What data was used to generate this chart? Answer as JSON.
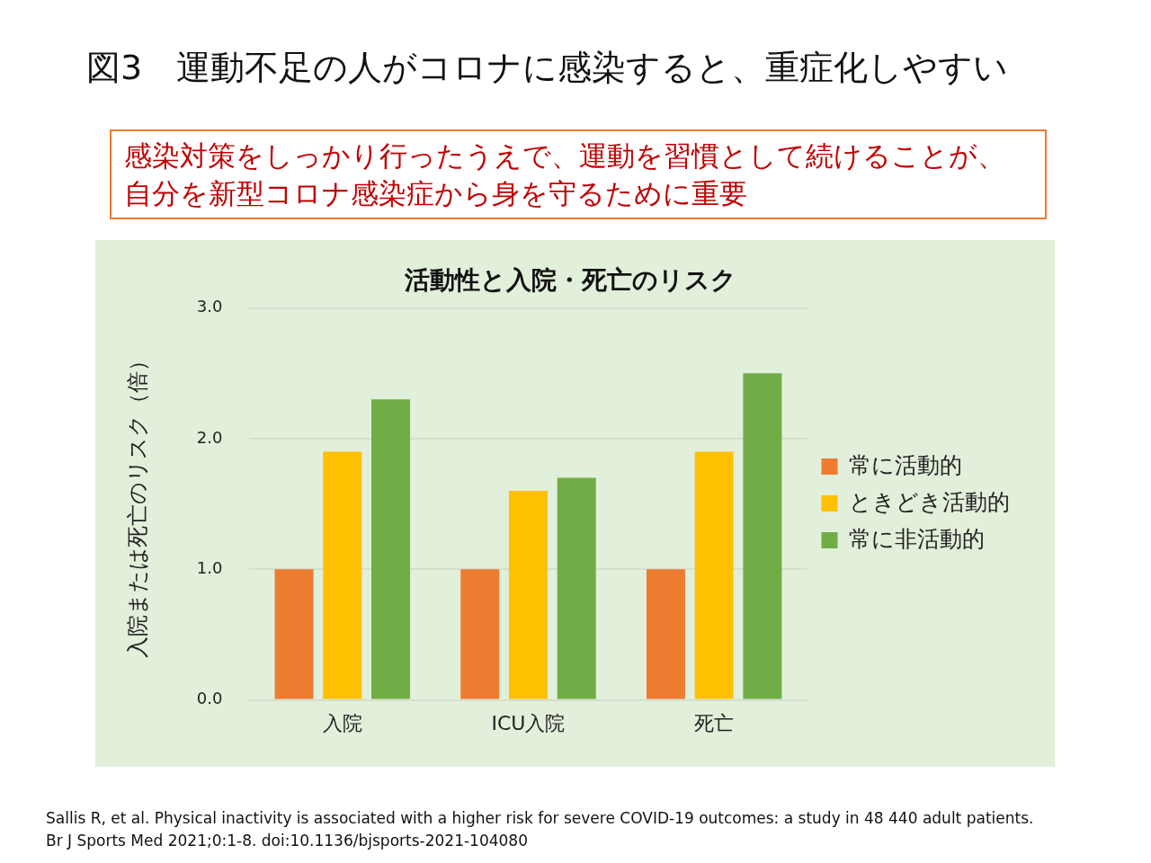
{
  "chart_data": {
    "type": "bar",
    "title": "図3　運動不足の人がコロナに感染すると、重症化しやすい",
    "subtitle": "感染対策をしっかり行ったうえで、運動を習慣として続けることが、自分を新型コロナ感染症から身を守るために重要",
    "annotations": [
      "活動性と入院・死亡のリスク",
      "Sallis R, et al. Physical inactivity is associated with a higher risk for severe COVID-19 outcomes: a study in 48 440 adult patients.",
      "Br J Sports Med 2021;0:1-8. doi:10.1136/bjsports-2021-104080"
    ],
    "ylabel": "入院または死亡のリスク（倍）",
    "categories": [
      "入院",
      "ICU入院",
      "死亡"
    ],
    "series": [
      {
        "name": "常に活動的",
        "color": "#ed7d31",
        "values": [
          1.0,
          1.0,
          1.0
        ]
      },
      {
        "name": "ときどき活動的",
        "color": "#ffc000",
        "values": [
          1.9,
          1.6,
          1.9
        ]
      },
      {
        "name": "常に非活動的",
        "color": "#70ad47",
        "values": [
          2.3,
          1.7,
          2.5
        ]
      }
    ],
    "ylim": [
      0,
      3
    ],
    "yticks": [
      {
        "value": 0,
        "label": "0.0"
      },
      {
        "value": 1,
        "label": "1.0"
      },
      {
        "value": 2,
        "label": "2.0"
      },
      {
        "value": 3,
        "label": "3.0"
      }
    ],
    "grid": "y",
    "legend": "right"
  }
}
